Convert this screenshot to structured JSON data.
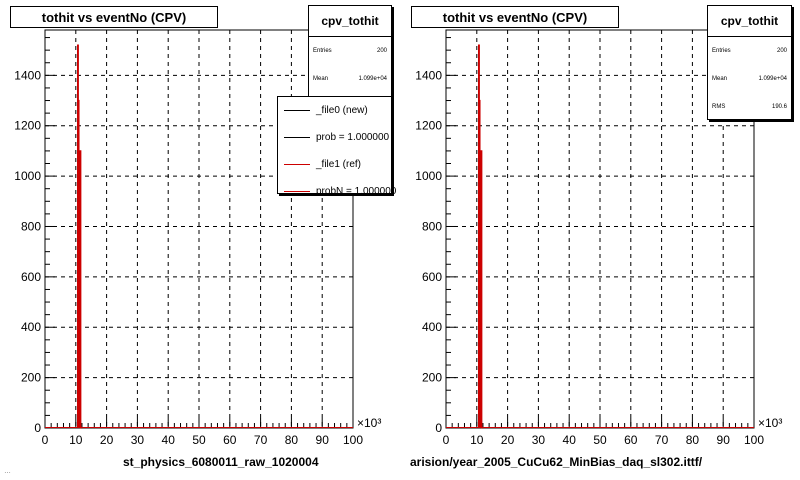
{
  "panels": [
    {
      "title": "tothit vs eventNo (CPV)",
      "xlabel": "st_physics_6080011_raw_1020004",
      "stats": {
        "title": "cpv_tothit",
        "rows": [
          {
            "key": "Entries",
            "value": "200"
          },
          {
            "key": "Mean",
            "value": "1.099e+04"
          }
        ]
      },
      "legend": [
        {
          "label": "_file0 (new)",
          "color": "#000000"
        },
        {
          "label": "prob = 1.000000",
          "color": "#000000"
        },
        {
          "label": "_file1 (ref)",
          "color": "#cc0000"
        },
        {
          "label": "probN = 1.000000",
          "color": "#cc0000"
        }
      ]
    },
    {
      "title": "tothit vs eventNo (CPV)",
      "xlabel": "arision/year_2005_CuCu62_MinBias_daq_sl302.ittf/",
      "stats": {
        "title": "cpv_tothit",
        "rows": [
          {
            "key": "Entries",
            "value": "200"
          },
          {
            "key": "Mean",
            "value": "1.099e+04"
          },
          {
            "key": "RMS",
            "value": "190.6"
          }
        ]
      },
      "legend": []
    }
  ],
  "footer": "…",
  "colors": {
    "hist_ref": "#cc0000",
    "hist_new": "#000000",
    "grid": "#000000"
  },
  "chart_data": [
    {
      "type": "bar",
      "title": "tothit vs eventNo (CPV)",
      "xlabel": "st_physics_6080011_raw_1020004",
      "ylabel": "",
      "xlim": [
        0,
        100
      ],
      "x_multiplier": "×10³",
      "ylim": [
        0,
        1580
      ],
      "x_ticks": [
        0,
        10,
        20,
        30,
        40,
        50,
        60,
        70,
        80,
        90,
        100
      ],
      "y_ticks": [
        0,
        200,
        400,
        600,
        800,
        1000,
        1200,
        1400
      ],
      "grid": true,
      "legend_position": "top-right",
      "series": [
        {
          "name": "_file1 (ref)",
          "color": "#cc0000",
          "x": [
            10.6,
            10.8,
            11.0,
            11.2,
            11.4,
            11.6
          ],
          "values": [
            1520,
            1300,
            600,
            380,
            1100,
            0
          ]
        }
      ]
    },
    {
      "type": "bar",
      "title": "tothit vs eventNo (CPV)",
      "xlabel": "arision/year_2005_CuCu62_MinBias_daq_sl302.ittf/",
      "ylabel": "",
      "xlim": [
        0,
        100
      ],
      "x_multiplier": "×10³",
      "ylim": [
        0,
        1580
      ],
      "x_ticks": [
        0,
        10,
        20,
        30,
        40,
        50,
        60,
        70,
        80,
        90,
        100
      ],
      "y_ticks": [
        0,
        200,
        400,
        600,
        800,
        1000,
        1200,
        1400
      ],
      "grid": true,
      "series": [
        {
          "name": "",
          "color": "#cc0000",
          "x": [
            10.6,
            10.8,
            11.0,
            11.2,
            11.4,
            11.6
          ],
          "values": [
            1520,
            1300,
            600,
            380,
            1100,
            0
          ]
        }
      ]
    }
  ]
}
